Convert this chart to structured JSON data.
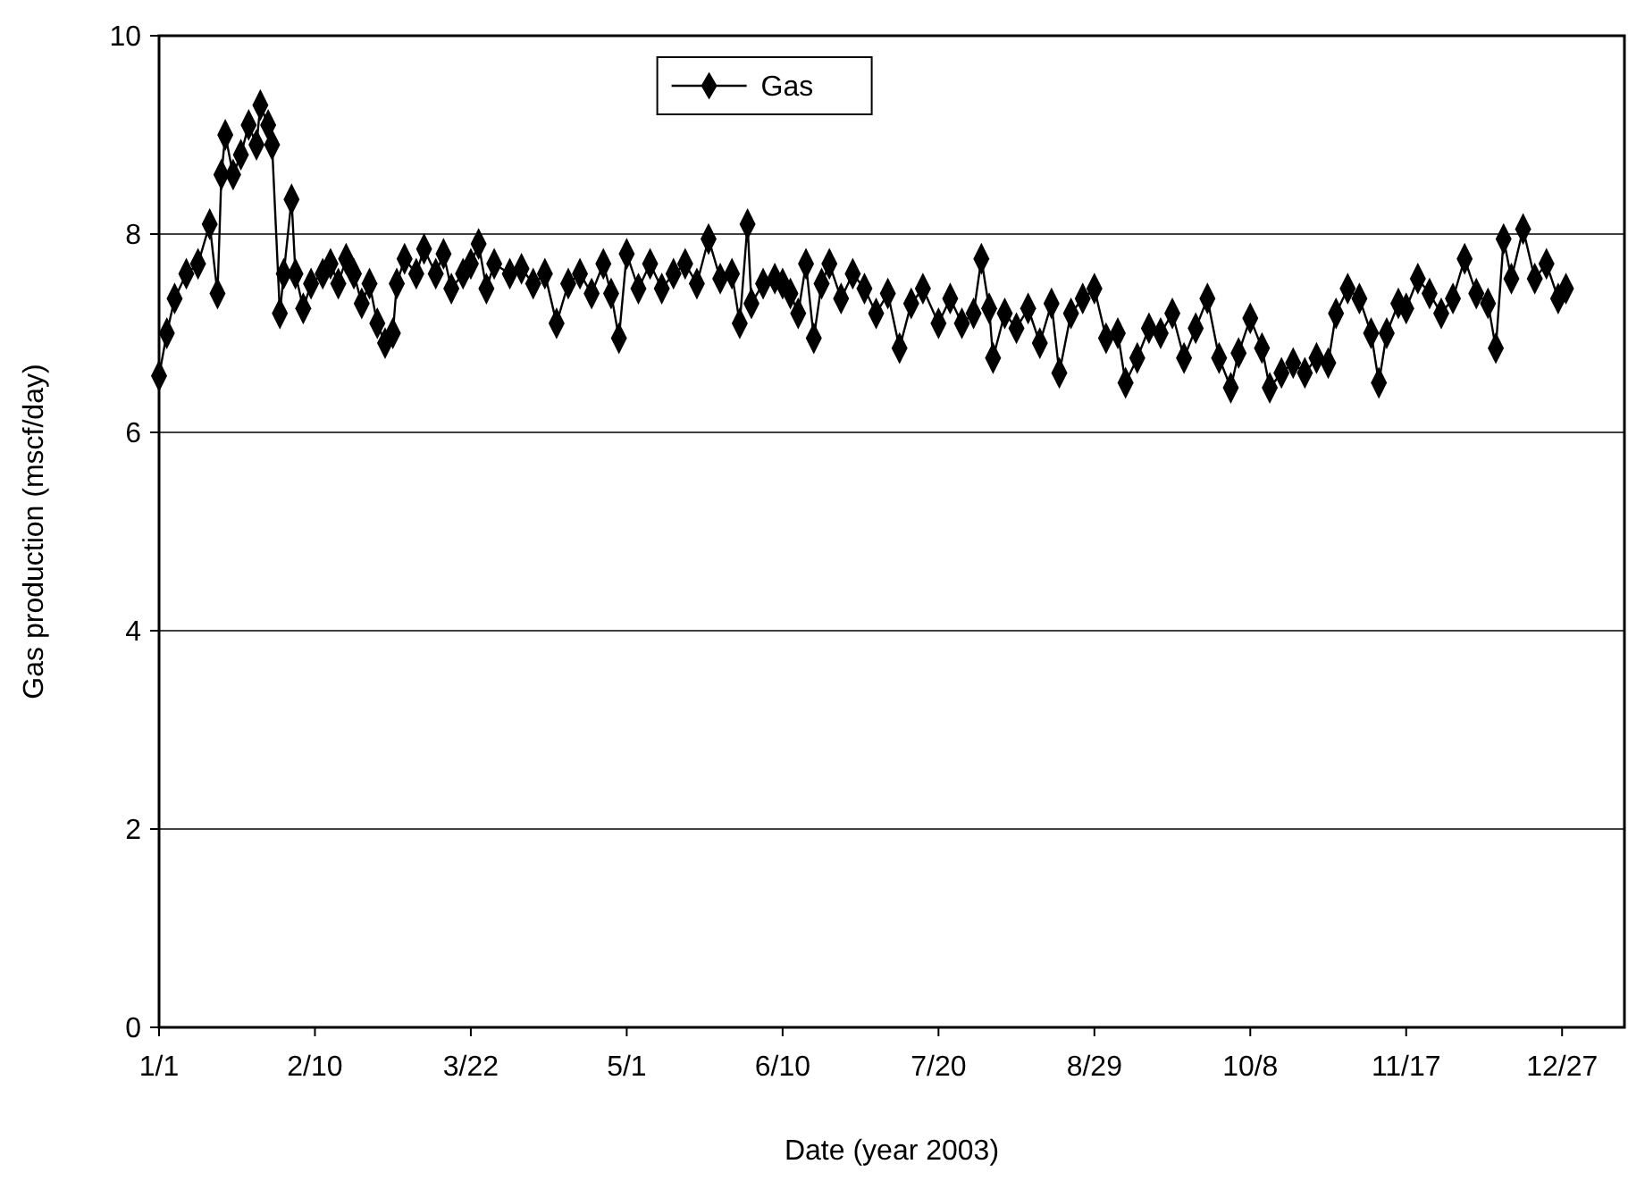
{
  "chart_data": {
    "type": "line",
    "xlabel": "Date (year 2003)",
    "ylabel": "Gas production (mscf/day)",
    "x": [
      "2003-01-01",
      "2003-01-03",
      "2003-01-05",
      "2003-01-08",
      "2003-01-11",
      "2003-01-14",
      "2003-01-16",
      "2003-01-17",
      "2003-01-18",
      "2003-01-20",
      "2003-01-22",
      "2003-01-24",
      "2003-01-26",
      "2003-01-27",
      "2003-01-29",
      "2003-01-30",
      "2003-02-01",
      "2003-02-02",
      "2003-02-04",
      "2003-02-05",
      "2003-02-07",
      "2003-02-09",
      "2003-02-12",
      "2003-02-14",
      "2003-02-16",
      "2003-02-18",
      "2003-02-20",
      "2003-02-22",
      "2003-02-24",
      "2003-02-26",
      "2003-02-28",
      "2003-03-02",
      "2003-03-03",
      "2003-03-05",
      "2003-03-08",
      "2003-03-10",
      "2003-03-13",
      "2003-03-15",
      "2003-03-17",
      "2003-03-20",
      "2003-03-22",
      "2003-03-24",
      "2003-03-26",
      "2003-03-28",
      "2003-04-01",
      "2003-04-04",
      "2003-04-07",
      "2003-04-10",
      "2003-04-13",
      "2003-04-16",
      "2003-04-19",
      "2003-04-22",
      "2003-04-25",
      "2003-04-27",
      "2003-04-29",
      "2003-05-01",
      "2003-05-04",
      "2003-05-07",
      "2003-05-10",
      "2003-05-13",
      "2003-05-16",
      "2003-05-19",
      "2003-05-22",
      "2003-05-25",
      "2003-05-28",
      "2003-05-30",
      "2003-06-01",
      "2003-06-02",
      "2003-06-05",
      "2003-06-08",
      "2003-06-10",
      "2003-06-12",
      "2003-06-14",
      "2003-06-16",
      "2003-06-18",
      "2003-06-20",
      "2003-06-22",
      "2003-06-25",
      "2003-06-28",
      "2003-07-01",
      "2003-07-04",
      "2003-07-07",
      "2003-07-10",
      "2003-07-13",
      "2003-07-16",
      "2003-07-20",
      "2003-07-23",
      "2003-07-26",
      "2003-07-29",
      "2003-07-31",
      "2003-08-02",
      "2003-08-03",
      "2003-08-06",
      "2003-08-09",
      "2003-08-12",
      "2003-08-15",
      "2003-08-18",
      "2003-08-20",
      "2003-08-23",
      "2003-08-26",
      "2003-08-29",
      "2003-09-01",
      "2003-09-04",
      "2003-09-06",
      "2003-09-09",
      "2003-09-12",
      "2003-09-15",
      "2003-09-18",
      "2003-09-21",
      "2003-09-24",
      "2003-09-27",
      "2003-09-30",
      "2003-10-03",
      "2003-10-05",
      "2003-10-08",
      "2003-10-11",
      "2003-10-13",
      "2003-10-16",
      "2003-10-19",
      "2003-10-22",
      "2003-10-25",
      "2003-10-28",
      "2003-10-30",
      "2003-11-02",
      "2003-11-05",
      "2003-11-08",
      "2003-11-10",
      "2003-11-12",
      "2003-11-15",
      "2003-11-17",
      "2003-11-20",
      "2003-11-23",
      "2003-11-26",
      "2003-11-29",
      "2003-12-02",
      "2003-12-05",
      "2003-12-08",
      "2003-12-10",
      "2003-12-12",
      "2003-12-14",
      "2003-12-17",
      "2003-12-20",
      "2003-12-23",
      "2003-12-26",
      "2003-12-28"
    ],
    "series": [
      {
        "name": "Gas",
        "color": "#000000",
        "values": [
          6.57,
          7.0,
          7.35,
          7.6,
          7.7,
          8.1,
          7.4,
          8.6,
          9.0,
          8.6,
          8.8,
          9.1,
          8.9,
          9.3,
          9.1,
          8.9,
          7.2,
          7.6,
          8.35,
          7.6,
          7.25,
          7.5,
          7.6,
          7.7,
          7.5,
          7.75,
          7.6,
          7.3,
          7.5,
          7.1,
          6.9,
          7.0,
          7.5,
          7.75,
          7.6,
          7.85,
          7.6,
          7.8,
          7.45,
          7.6,
          7.7,
          7.9,
          7.45,
          7.7,
          7.6,
          7.65,
          7.5,
          7.6,
          7.1,
          7.5,
          7.6,
          7.4,
          7.7,
          7.4,
          6.95,
          7.8,
          7.45,
          7.7,
          7.45,
          7.6,
          7.7,
          7.5,
          7.95,
          7.55,
          7.6,
          7.1,
          8.1,
          7.3,
          7.5,
          7.55,
          7.5,
          7.4,
          7.2,
          7.7,
          6.95,
          7.5,
          7.7,
          7.35,
          7.6,
          7.45,
          7.2,
          7.4,
          6.85,
          7.3,
          7.45,
          7.1,
          7.35,
          7.1,
          7.2,
          7.75,
          7.25,
          6.75,
          7.2,
          7.05,
          7.25,
          6.9,
          7.3,
          6.6,
          7.2,
          7.35,
          7.45,
          6.95,
          7.0,
          6.5,
          6.75,
          7.05,
          7.0,
          7.2,
          6.75,
          7.05,
          7.35,
          6.75,
          6.45,
          6.8,
          7.15,
          6.85,
          6.45,
          6.6,
          6.7,
          6.6,
          6.75,
          6.7,
          7.2,
          7.45,
          7.35,
          7.0,
          6.5,
          7.0,
          7.3,
          7.25,
          7.55,
          7.4,
          7.2,
          7.35,
          7.75,
          7.4,
          7.3,
          6.85,
          7.95,
          7.55,
          8.05,
          7.55,
          7.7,
          7.35,
          7.45
        ]
      }
    ],
    "xlim": [
      "2003-01-01",
      "2004-01-12"
    ],
    "xticks": [
      {
        "value": "2003-01-01",
        "label": "1/1"
      },
      {
        "value": "2003-02-10",
        "label": "2/10"
      },
      {
        "value": "2003-03-22",
        "label": "3/22"
      },
      {
        "value": "2003-05-01",
        "label": "5/1"
      },
      {
        "value": "2003-06-10",
        "label": "6/10"
      },
      {
        "value": "2003-07-20",
        "label": "7/20"
      },
      {
        "value": "2003-08-29",
        "label": "8/29"
      },
      {
        "value": "2003-10-08",
        "label": "10/8"
      },
      {
        "value": "2003-11-17",
        "label": "11/17"
      },
      {
        "value": "2003-12-27",
        "label": "12/27"
      }
    ],
    "ylim": [
      0,
      10
    ],
    "yticks": [
      0,
      2,
      4,
      6,
      8,
      10
    ],
    "grid": "y",
    "legend": "top",
    "marker": "diamond",
    "line_style": "solid"
  }
}
